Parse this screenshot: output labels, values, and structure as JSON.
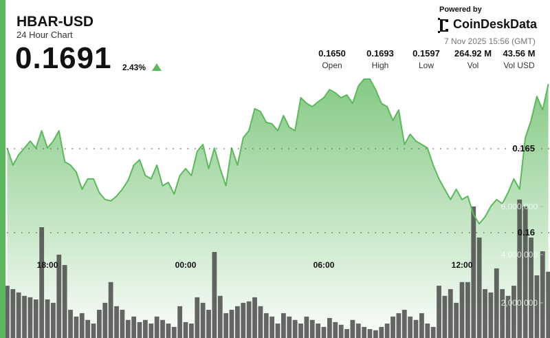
{
  "header": {
    "title": "HBAR-USD",
    "subtitle": "24 Hour Chart",
    "price": "0.1691",
    "change": "2.43%",
    "powered_by": "Powered by",
    "brand": "CoinDeskData",
    "timestamp": "7 Nov 2025 15:56 (GMT)",
    "stats": [
      {
        "value": "0.1650",
        "label": "Open"
      },
      {
        "value": "0.1693",
        "label": "High"
      },
      {
        "value": "0.1597",
        "label": "Low"
      },
      {
        "value": "264.92 M",
        "label": "Vol"
      },
      {
        "value": "43.56 M",
        "label": "Vol USD"
      }
    ]
  },
  "chart_data": {
    "type": "line",
    "categories": [
      null,
      null,
      null,
      null,
      null,
      null,
      null,
      "18:00",
      null,
      null,
      null,
      null,
      null,
      null,
      null,
      null,
      null,
      null,
      null,
      null,
      null,
      null,
      null,
      null,
      null,
      null,
      null,
      null,
      null,
      null,
      null,
      "00:00",
      null,
      null,
      null,
      null,
      null,
      null,
      null,
      null,
      null,
      null,
      null,
      null,
      null,
      null,
      null,
      null,
      null,
      null,
      null,
      null,
      null,
      null,
      null,
      "06:00",
      null,
      null,
      null,
      null,
      null,
      null,
      null,
      null,
      null,
      null,
      null,
      null,
      null,
      null,
      null,
      null,
      null,
      null,
      null,
      null,
      null,
      null,
      null,
      "12:00",
      null,
      null,
      null,
      null,
      null,
      null,
      null,
      null,
      null,
      null,
      null,
      null,
      null,
      null,
      null
    ],
    "series": [
      {
        "color": "#5cb85c",
        "values": [
          0.16504,
          0.16402,
          0.16463,
          0.16504,
          0.16545,
          0.16504,
          0.16607,
          0.16504,
          0.16545,
          0.16607,
          0.16422,
          0.16402,
          0.16361,
          0.16258,
          0.1632,
          0.1632,
          0.16238,
          0.16197,
          0.16189,
          0.16217,
          0.16258,
          0.16311,
          0.16402,
          0.16434,
          0.1634,
          0.1632,
          0.16402,
          0.16279,
          0.16299,
          0.1623,
          0.1634,
          0.16381,
          0.1634,
          0.16484,
          0.16525,
          0.16381,
          0.16504,
          0.16381,
          0.16279,
          0.16504,
          0.16402,
          0.16566,
          0.16607,
          0.16738,
          0.16721,
          0.16656,
          0.16648,
          0.16607,
          0.16697,
          0.16627,
          0.16607,
          0.16803,
          0.1677,
          0.1675,
          0.16779,
          0.16803,
          0.16852,
          0.16832,
          0.16803,
          0.1682,
          0.1677,
          0.16873,
          0.16914,
          0.16914,
          0.16852,
          0.1677,
          0.1675,
          0.16668,
          0.1673,
          0.16525,
          0.16586,
          0.16545,
          0.16525,
          0.16504,
          0.16402,
          0.1632,
          0.16258,
          0.16197,
          0.16258,
          0.16197,
          0.16217,
          0.16107,
          0.16053,
          0.16094,
          0.16156,
          0.16197,
          0.16172,
          0.16238,
          0.1632,
          0.16258,
          0.16566,
          0.16668,
          0.16811,
          0.1673,
          0.16885
        ]
      },
      {
        "type": "bar",
        "axis": "y2",
        "color": "#4a4a4a",
        "values": [
          2710000,
          2570000,
          2430000,
          2290000,
          2230000,
          2140000,
          5140000,
          2140000,
          2000000,
          4000000,
          3570000,
          1710000,
          1430000,
          1570000,
          1290000,
          1140000,
          1710000,
          2000000,
          2860000,
          1860000,
          1710000,
          1290000,
          1430000,
          1200000,
          1290000,
          1140000,
          1430000,
          1290000,
          1140000,
          1000000,
          1860000,
          1200000,
          1140000,
          2230000,
          2000000,
          1710000,
          4110000,
          2290000,
          1570000,
          1710000,
          1860000,
          2000000,
          2060000,
          2230000,
          1860000,
          1570000,
          1430000,
          1140000,
          1570000,
          1430000,
          1290000,
          1140000,
          1430000,
          1290000,
          1140000,
          1000000,
          1370000,
          1200000,
          1090000,
          910000,
          1290000,
          1140000,
          1000000,
          910000,
          860000,
          1000000,
          1140000,
          1430000,
          1570000,
          1710000,
          1430000,
          1290000,
          1570000,
          1140000,
          1000000,
          2710000,
          2290000,
          2570000,
          2000000,
          2860000,
          2860000,
          6000000,
          4710000,
          2570000,
          2430000,
          3430000,
          2570000,
          2290000,
          2710000,
          6290000,
          6000000,
          4710000,
          3140000,
          4140000,
          3290000
        ]
      }
    ],
    "ylim": [
      0.15373,
      0.17385
    ],
    "yticks": [
      0.165,
      0.16
    ],
    "y2lim": [
      540000,
      14570000
    ],
    "y2ticks": [
      {
        "value": 6000000,
        "label": "6,000,000"
      },
      {
        "value": 4000000,
        "label": "4,000,000"
      },
      {
        "value": 2000000,
        "label": "2,000,000"
      }
    ],
    "grid": true
  }
}
